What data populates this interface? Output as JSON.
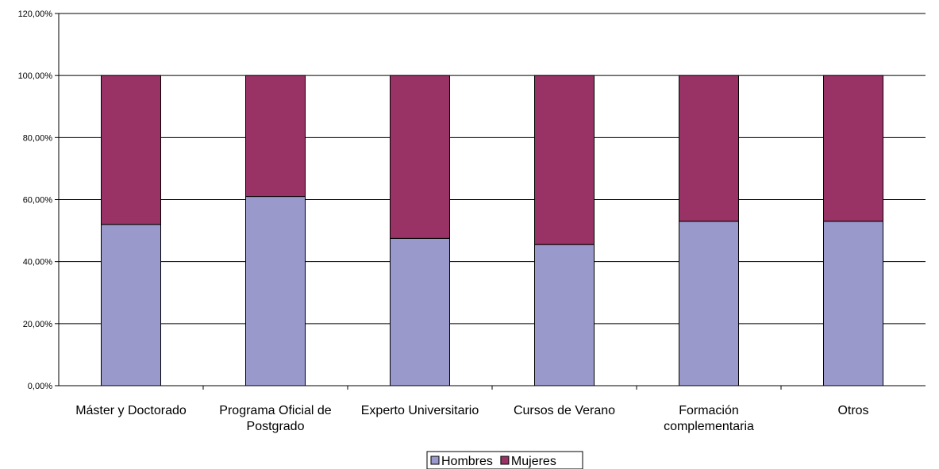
{
  "chart_data": {
    "type": "bar",
    "stacked": true,
    "categories": [
      [
        "Máster y Doctorado"
      ],
      [
        "Programa Oficial de",
        "Postgrado"
      ],
      [
        "Experto Universitario"
      ],
      [
        "Cursos de Verano"
      ],
      [
        "Formación",
        "complementaria"
      ],
      [
        "Otros"
      ]
    ],
    "series": [
      {
        "name": "Hombres",
        "color": "#9999cc",
        "values": [
          52.0,
          61.0,
          47.5,
          45.5,
          53.0,
          53.0
        ]
      },
      {
        "name": "Mujeres",
        "color": "#993366",
        "values": [
          48.0,
          39.0,
          52.5,
          54.5,
          47.0,
          47.0
        ]
      }
    ],
    "ylim": [
      0,
      120
    ],
    "yticks": [
      "0,00%",
      "20,00%",
      "40,00%",
      "60,00%",
      "80,00%",
      "100,00%",
      "120,00%"
    ],
    "ytick_values": [
      0,
      20,
      40,
      60,
      80,
      100,
      120
    ],
    "grid": true,
    "legend_position": "bottom",
    "title": "",
    "xlabel": "",
    "ylabel": ""
  }
}
